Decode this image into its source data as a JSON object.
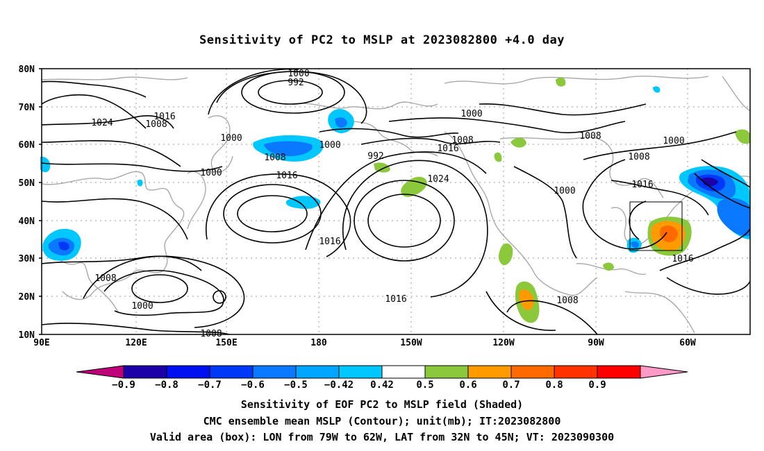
{
  "title": "Sensitivity of PC2 to MSLP at 2023082800 +4.0 day",
  "map": {
    "lat_labels": [
      "80N",
      "70N",
      "60N",
      "50N",
      "40N",
      "30N",
      "20N",
      "10N"
    ],
    "lon_labels": [
      "90E",
      "120E",
      "150E",
      "180",
      "150W",
      "120W",
      "90W",
      "60W"
    ],
    "contour_labels": [
      {
        "text": "1000"
      },
      {
        "text": "992"
      },
      {
        "text": "1024"
      },
      {
        "text": "1016"
      },
      {
        "text": "1008"
      },
      {
        "text": "1000"
      },
      {
        "text": "1000"
      },
      {
        "text": "1000"
      },
      {
        "text": "1008"
      },
      {
        "text": "1016"
      },
      {
        "text": "992"
      },
      {
        "text": "1008"
      },
      {
        "text": "1016"
      },
      {
        "text": "1024"
      },
      {
        "text": "1016"
      },
      {
        "text": "1008"
      },
      {
        "text": "1000"
      },
      {
        "text": "1008"
      },
      {
        "text": "1000"
      },
      {
        "text": "1016"
      },
      {
        "text": "1000"
      },
      {
        "text": "1008"
      },
      {
        "text": "1016"
      },
      {
        "text": "1008"
      },
      {
        "text": "1000"
      },
      {
        "text": "1008"
      }
    ],
    "valid_box": {
      "lon_from": "79W",
      "lon_to": "62W",
      "lat_from": "32N",
      "lat_to": "45N"
    }
  },
  "colorbar": {
    "labels": [
      "-0.9",
      "-0.8",
      "-0.7",
      "-0.6",
      "-0.5",
      "-0.42",
      "0.42",
      "0.5",
      "0.6",
      "0.7",
      "0.8",
      "0.9"
    ],
    "colors": [
      "#1c00a8",
      "#0010f0",
      "#0038f8",
      "#0a78ff",
      "#00a6ff",
      "#00c8ff",
      "#ffffff",
      "#8cc83c",
      "#ff9a00",
      "#ff6a00",
      "#ff3200",
      "#ff0000"
    ],
    "left_end_color": "#c0007a",
    "right_end_color": "#ff9ac8"
  },
  "captions": {
    "line1": "Sensitivity of EOF PC2 to MSLP field (Shaded)",
    "line2": "CMC ensemble mean MSLP (Contour); unit(mb); IT:2023082800",
    "line3": "Valid area (box): LON from 79W to 62W, LAT from 32N to 45N; VT: 2023090300"
  }
}
